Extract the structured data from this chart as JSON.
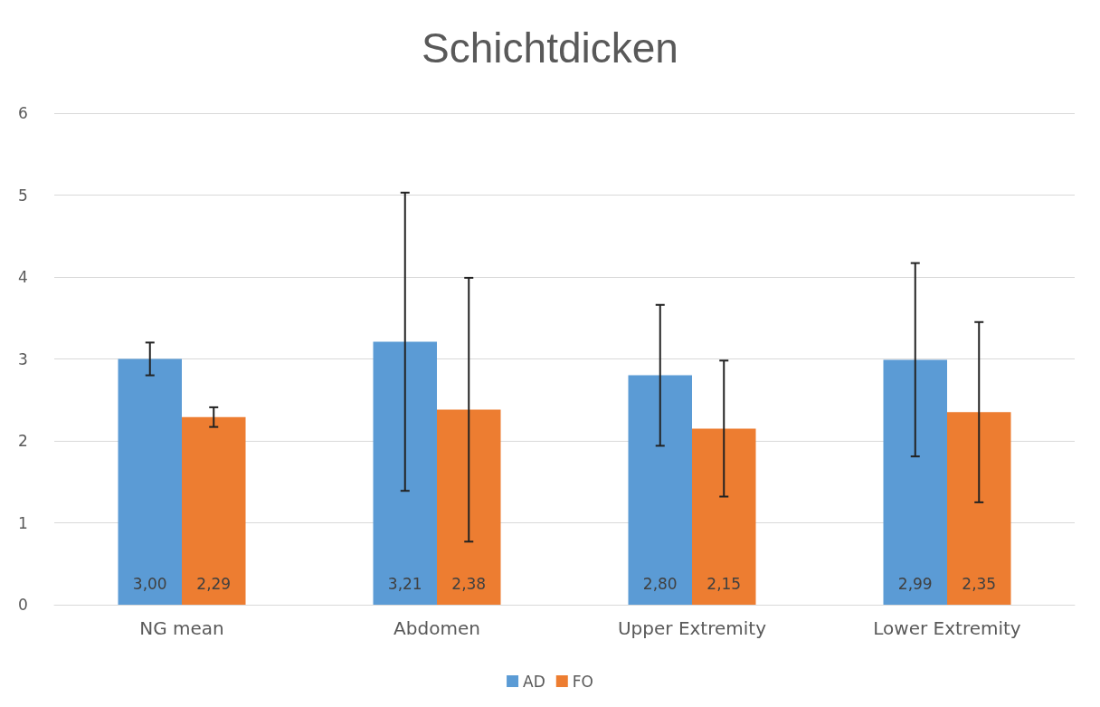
{
  "chart_data": {
    "type": "bar",
    "title": "Schichtdicken",
    "categories": [
      "NG mean",
      "Abdomen",
      "Upper Extremity",
      "Lower Extremity"
    ],
    "series": [
      {
        "name": "AD",
        "color": "#5b9bd5",
        "values": [
          3.0,
          3.21,
          2.8,
          2.99
        ],
        "value_labels": [
          "3,00",
          "3,21",
          "2,80",
          "2,99"
        ],
        "errors": [
          0.2,
          1.82,
          0.86,
          1.18
        ]
      },
      {
        "name": "FO",
        "color": "#ed7d31",
        "values": [
          2.29,
          2.38,
          2.15,
          2.35
        ],
        "value_labels": [
          "2,29",
          "2,38",
          "2,15",
          "2,35"
        ],
        "errors": [
          0.12,
          1.61,
          0.83,
          1.1
        ]
      }
    ],
    "ylim": [
      0,
      6
    ],
    "yticks": [
      0,
      1,
      2,
      3,
      4,
      5,
      6
    ],
    "grid": "y",
    "legend": "bottom"
  }
}
